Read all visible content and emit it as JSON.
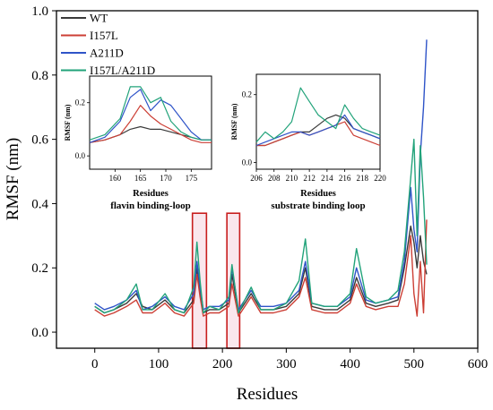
{
  "chart_data": {
    "type": "line",
    "xlabel": "Residues",
    "ylabel": "RMSF (nm)",
    "xlim": [
      -60,
      600
    ],
    "ylim": [
      -0.05,
      1.0
    ],
    "xticks": [
      "0",
      "100",
      "200",
      "300",
      "400",
      "500",
      "600"
    ],
    "xtick_values": [
      0,
      100,
      200,
      300,
      400,
      500,
      600
    ],
    "yticks": [
      "0.0",
      "0.2",
      "0.4",
      "0.6",
      "0.8",
      "1.0"
    ],
    "ytick_values": [
      0.0,
      0.2,
      0.4,
      0.6,
      0.8,
      1.0
    ],
    "legend_position": "top-left",
    "series": [
      {
        "name": "WT",
        "color": "#3a3a3a",
        "x": [
          0,
          15,
          30,
          50,
          65,
          75,
          90,
          110,
          125,
          140,
          155,
          160,
          165,
          170,
          180,
          195,
          210,
          215,
          225,
          245,
          260,
          280,
          300,
          320,
          330,
          340,
          360,
          380,
          400,
          410,
          425,
          440,
          460,
          475,
          485,
          495,
          500,
          505,
          510,
          515,
          520
        ],
        "y": [
          0.08,
          0.06,
          0.07,
          0.09,
          0.12,
          0.08,
          0.07,
          0.1,
          0.07,
          0.06,
          0.1,
          0.2,
          0.12,
          0.06,
          0.07,
          0.07,
          0.09,
          0.18,
          0.06,
          0.12,
          0.07,
          0.07,
          0.08,
          0.12,
          0.2,
          0.08,
          0.07,
          0.07,
          0.1,
          0.17,
          0.09,
          0.08,
          0.09,
          0.1,
          0.2,
          0.33,
          0.28,
          0.2,
          0.3,
          0.22,
          0.18
        ]
      },
      {
        "name": "I157L",
        "color": "#cc3f35",
        "x": [
          0,
          15,
          30,
          50,
          65,
          75,
          90,
          110,
          125,
          140,
          155,
          160,
          165,
          170,
          180,
          195,
          210,
          215,
          225,
          245,
          260,
          280,
          300,
          320,
          330,
          340,
          360,
          380,
          400,
          410,
          425,
          440,
          460,
          475,
          485,
          495,
          500,
          505,
          510,
          515,
          520
        ],
        "y": [
          0.07,
          0.05,
          0.06,
          0.08,
          0.1,
          0.06,
          0.06,
          0.09,
          0.06,
          0.05,
          0.09,
          0.18,
          0.11,
          0.05,
          0.06,
          0.06,
          0.08,
          0.15,
          0.05,
          0.11,
          0.06,
          0.06,
          0.07,
          0.11,
          0.17,
          0.07,
          0.06,
          0.06,
          0.09,
          0.15,
          0.08,
          0.07,
          0.08,
          0.08,
          0.15,
          0.3,
          0.12,
          0.05,
          0.22,
          0.06,
          0.35
        ]
      },
      {
        "name": "A211D",
        "color": "#2f54c8",
        "x": [
          0,
          15,
          30,
          50,
          65,
          75,
          90,
          110,
          125,
          140,
          155,
          160,
          165,
          170,
          180,
          195,
          210,
          215,
          225,
          245,
          260,
          280,
          300,
          320,
          330,
          340,
          360,
          380,
          400,
          410,
          425,
          440,
          460,
          475,
          485,
          495,
          500,
          505,
          510,
          515,
          520
        ],
        "y": [
          0.09,
          0.07,
          0.08,
          0.1,
          0.13,
          0.07,
          0.08,
          0.11,
          0.08,
          0.07,
          0.12,
          0.22,
          0.14,
          0.07,
          0.08,
          0.08,
          0.1,
          0.2,
          0.07,
          0.13,
          0.08,
          0.08,
          0.09,
          0.13,
          0.22,
          0.09,
          0.08,
          0.08,
          0.11,
          0.2,
          0.1,
          0.09,
          0.1,
          0.11,
          0.22,
          0.45,
          0.32,
          0.25,
          0.55,
          0.7,
          0.91
        ]
      },
      {
        "name": "I157L/A211D",
        "color": "#22a37a",
        "x": [
          0,
          15,
          30,
          50,
          65,
          75,
          90,
          110,
          125,
          140,
          155,
          160,
          165,
          170,
          180,
          195,
          210,
          215,
          225,
          245,
          260,
          280,
          300,
          320,
          330,
          340,
          360,
          380,
          400,
          410,
          425,
          440,
          460,
          475,
          485,
          495,
          500,
          505,
          510,
          515,
          520
        ],
        "y": [
          0.08,
          0.06,
          0.07,
          0.1,
          0.15,
          0.07,
          0.07,
          0.12,
          0.07,
          0.06,
          0.14,
          0.28,
          0.16,
          0.06,
          0.08,
          0.07,
          0.11,
          0.21,
          0.06,
          0.14,
          0.07,
          0.07,
          0.09,
          0.16,
          0.29,
          0.09,
          0.08,
          0.08,
          0.12,
          0.26,
          0.11,
          0.09,
          0.1,
          0.13,
          0.25,
          0.48,
          0.6,
          0.3,
          0.58,
          0.42,
          0.21
        ]
      }
    ],
    "insets": [
      {
        "xlabel": "Residues",
        "ylabel": "RMSF (nm)",
        "caption": "flavin binding-loop",
        "xlim": [
          155,
          179
        ],
        "ylim": [
          -0.05,
          0.3
        ],
        "xticks": [
          "160",
          "165",
          "170",
          "175"
        ],
        "xtick_values": [
          160,
          165,
          170,
          175
        ],
        "yticks": [
          "0.0",
          "0.2"
        ],
        "ytick_values": [
          0.0,
          0.2
        ],
        "series": [
          {
            "name": "WT",
            "x": [
              155,
              158,
              161,
              163,
              165,
              167,
              169,
              171,
              173,
              175,
              177,
              179
            ],
            "y": [
              0.05,
              0.06,
              0.08,
              0.1,
              0.11,
              0.1,
              0.1,
              0.09,
              0.08,
              0.07,
              0.06,
              0.06
            ]
          },
          {
            "name": "I157L",
            "x": [
              155,
              158,
              161,
              163,
              165,
              167,
              169,
              171,
              173,
              175,
              177,
              179
            ],
            "y": [
              0.05,
              0.06,
              0.08,
              0.13,
              0.19,
              0.15,
              0.12,
              0.1,
              0.08,
              0.06,
              0.05,
              0.05
            ]
          },
          {
            "name": "A211D",
            "x": [
              155,
              158,
              161,
              163,
              165,
              167,
              169,
              171,
              173,
              175,
              177,
              179
            ],
            "y": [
              0.05,
              0.07,
              0.13,
              0.22,
              0.25,
              0.17,
              0.21,
              0.19,
              0.14,
              0.09,
              0.06,
              0.06
            ]
          },
          {
            "name": "I157L/A211D",
            "x": [
              155,
              158,
              161,
              163,
              165,
              167,
              169,
              171,
              173,
              175,
              177,
              179
            ],
            "y": [
              0.06,
              0.08,
              0.14,
              0.26,
              0.26,
              0.2,
              0.22,
              0.13,
              0.09,
              0.07,
              0.06,
              0.06
            ]
          }
        ]
      },
      {
        "xlabel": "Residues",
        "ylabel": "RMSF (nm)",
        "caption": "substrate binding loop",
        "xlim": [
          206,
          220
        ],
        "ylim": [
          -0.02,
          0.26
        ],
        "xticks": [
          "206",
          "208",
          "210",
          "212",
          "214",
          "216",
          "218",
          "220"
        ],
        "xtick_values": [
          206,
          208,
          210,
          212,
          214,
          216,
          218,
          220
        ],
        "yticks": [
          "0.0",
          "0.2"
        ],
        "ytick_values": [
          0.0,
          0.2
        ],
        "series": [
          {
            "name": "WT",
            "x": [
              206,
              207,
              208,
              209,
              210,
              211,
              212,
              213,
              214,
              215,
              216,
              217,
              218,
              219,
              220
            ],
            "y": [
              0.05,
              0.05,
              0.06,
              0.07,
              0.08,
              0.09,
              0.09,
              0.11,
              0.13,
              0.14,
              0.13,
              0.1,
              0.09,
              0.08,
              0.07
            ]
          },
          {
            "name": "I157L",
            "x": [
              206,
              207,
              208,
              209,
              210,
              211,
              212,
              213,
              214,
              215,
              216,
              217,
              218,
              219,
              220
            ],
            "y": [
              0.05,
              0.05,
              0.06,
              0.07,
              0.08,
              0.09,
              0.08,
              0.09,
              0.1,
              0.11,
              0.12,
              0.08,
              0.07,
              0.06,
              0.05
            ]
          },
          {
            "name": "A211D",
            "x": [
              206,
              207,
              208,
              209,
              210,
              211,
              212,
              213,
              214,
              215,
              216,
              217,
              218,
              219,
              220
            ],
            "y": [
              0.05,
              0.06,
              0.07,
              0.08,
              0.09,
              0.09,
              0.08,
              0.09,
              0.1,
              0.11,
              0.14,
              0.1,
              0.09,
              0.08,
              0.07
            ]
          },
          {
            "name": "I157L/A211D",
            "x": [
              206,
              207,
              208,
              209,
              210,
              211,
              212,
              213,
              214,
              215,
              216,
              217,
              218,
              219,
              220
            ],
            "y": [
              0.06,
              0.09,
              0.07,
              0.09,
              0.12,
              0.22,
              0.18,
              0.14,
              0.12,
              0.1,
              0.17,
              0.13,
              0.1,
              0.09,
              0.08
            ]
          }
        ]
      }
    ],
    "highlight_regions": [
      {
        "x_range": [
          153,
          175
        ],
        "y_range": [
          -0.05,
          0.37
        ],
        "fill": "#f6d4df",
        "stroke": "#c81e1e"
      },
      {
        "x_range": [
          207,
          227
        ],
        "y_range": [
          -0.05,
          0.37
        ],
        "fill": "#f6d4df",
        "stroke": "#c81e1e"
      }
    ]
  }
}
